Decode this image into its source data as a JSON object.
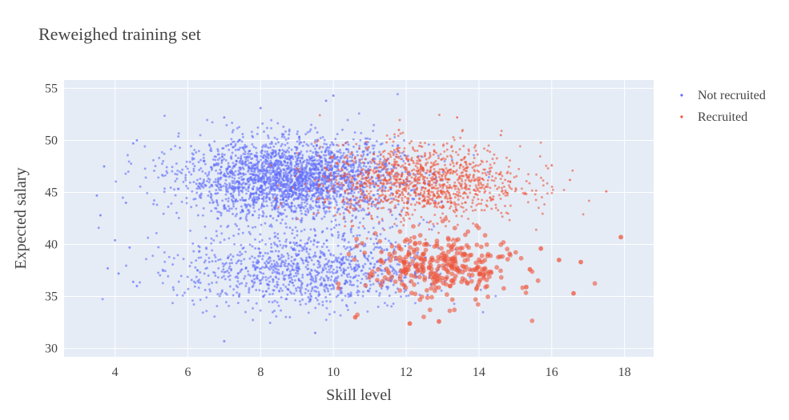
{
  "chart_data": {
    "type": "scatter",
    "title": "Reweighed training set",
    "xlabel": "Skill level",
    "ylabel": "Expected salary",
    "xlim": [
      2.6,
      18.8
    ],
    "ylim": [
      29.2,
      55.8
    ],
    "x_ticks": [
      4,
      6,
      8,
      10,
      12,
      14,
      16,
      18
    ],
    "y_ticks": [
      30,
      35,
      40,
      45,
      50,
      55
    ],
    "x_tick_labels": [
      "4",
      "6",
      "8",
      "10",
      "12",
      "14",
      "16",
      "18"
    ],
    "y_tick_labels": [
      "30",
      "35",
      "40",
      "45",
      "50",
      "55"
    ],
    "grid": true,
    "legend_position": "top-right",
    "plot_background": "#e5ecf6",
    "series": [
      {
        "name": "Not recruited",
        "color": "#636efa",
        "clusters": [
          {
            "center": [
              8.9,
              46.3
            ],
            "spread": [
              1.5,
              1.9
            ],
            "count": 2600,
            "marker_size": 1
          },
          {
            "center": [
              9.3,
              37.6
            ],
            "spread": [
              1.7,
              1.9
            ],
            "count": 1100,
            "marker_size": 1
          }
        ],
        "points": [
          [
            3.5,
            44.7
          ],
          [
            3.6,
            42.8
          ],
          [
            3.7,
            47.5
          ],
          [
            3.8,
            37.7
          ],
          [
            4.0,
            40.4
          ],
          [
            4.1,
            37.2
          ],
          [
            4.3,
            44.0
          ],
          [
            4.5,
            49.7
          ],
          [
            4.6,
            50.0
          ],
          [
            4.4,
            39.7
          ],
          [
            4.5,
            36.4
          ],
          [
            4.6,
            36.0
          ],
          [
            10.0,
            54.3
          ],
          [
            7.0,
            30.7
          ],
          [
            9.5,
            31.5
          ],
          [
            8.0,
            53.1
          ],
          [
            7.0,
            52.2
          ],
          [
            9.8,
            53.8
          ]
        ]
      },
      {
        "name": "Recruited",
        "color": "#ef553b",
        "clusters": [
          {
            "center": [
              12.4,
              46.0
            ],
            "spread": [
              1.4,
              1.8
            ],
            "count": 1200,
            "marker_size": 1
          },
          {
            "center": [
              12.9,
              37.8
            ],
            "spread": [
              1.0,
              1.7
            ],
            "count": 330,
            "marker_size": 2
          }
        ],
        "points": [
          [
            17.9,
            40.7
          ],
          [
            17.5,
            45.1
          ],
          [
            16.8,
            38.3
          ],
          [
            16.6,
            35.3
          ],
          [
            16.2,
            38.5
          ],
          [
            15.7,
            39.6
          ],
          [
            15.4,
            37.6
          ],
          [
            15.3,
            35.9
          ],
          [
            10.6,
            33.0
          ],
          [
            12.1,
            32.4
          ],
          [
            12.9,
            32.6
          ],
          [
            13.4,
            52.2
          ],
          [
            16.5,
            46.2
          ],
          [
            16.0,
            47.6
          ],
          [
            14.6,
            50.5
          ],
          [
            11.8,
            51.0
          ]
        ]
      }
    ]
  }
}
